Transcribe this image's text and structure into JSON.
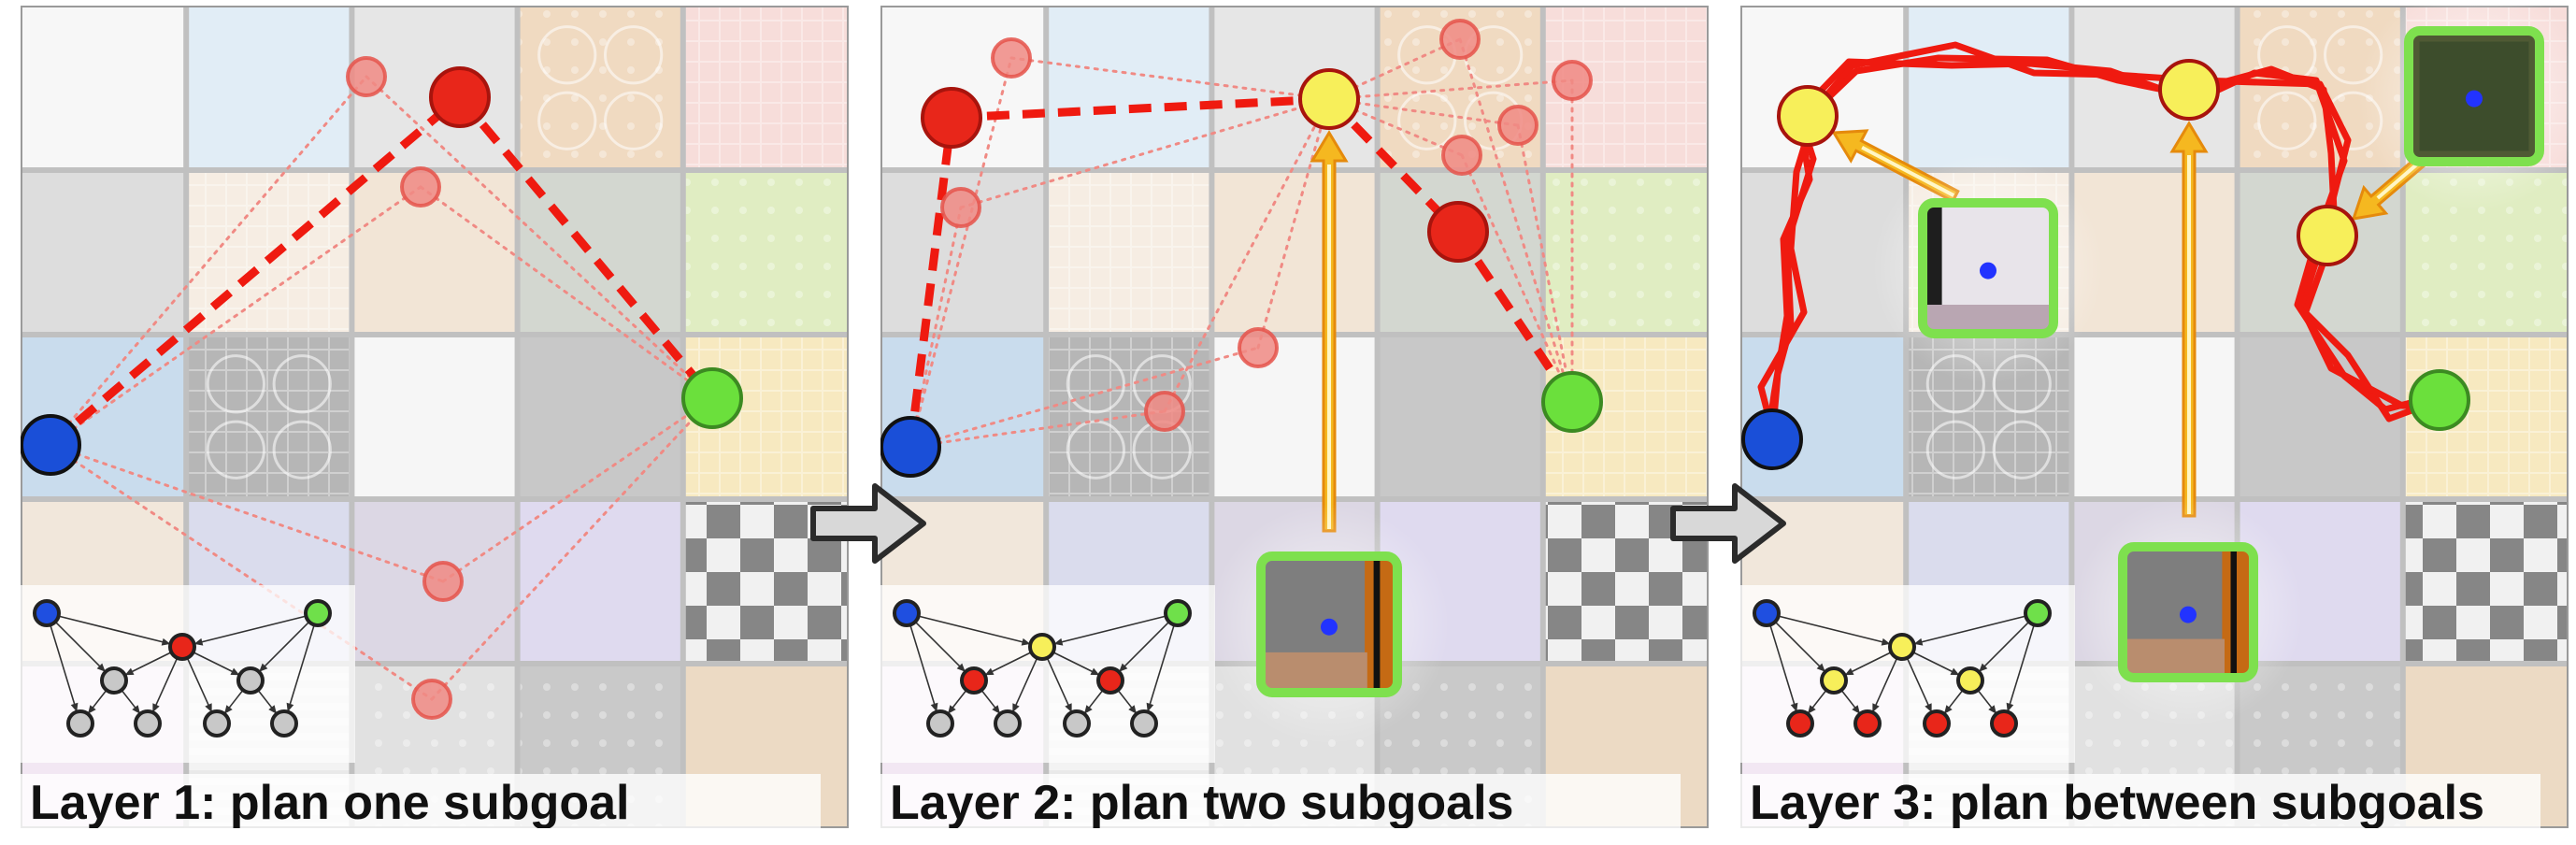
{
  "panels": [
    {
      "caption": "Layer 1: plan one subgoal",
      "tree_colors": {
        "root": [
          "#1f4fe0",
          "#6fe04a"
        ],
        "mid": "red",
        "sub": "gray",
        "leaf": "gray"
      }
    },
    {
      "caption": "Layer 2: plan two subgoals",
      "tree_colors": {
        "root": [
          "#1f4fe0",
          "#6fe04a"
        ],
        "mid": "yellow",
        "sub": "red",
        "leaf": "gray"
      }
    },
    {
      "caption": "Layer 3: plan between subgoals",
      "tree_colors": {
        "root": [
          "#1f4fe0",
          "#6fe04a"
        ],
        "mid": "yellow",
        "sub": "yellow",
        "leaf": "red"
      }
    }
  ],
  "colors": {
    "start": "#1a4fd8",
    "goal": "#6be03c",
    "subgoal_red": "#e8261a",
    "subgoal_yellow": "#f7ef5a",
    "candidate": "#f08a84",
    "path": "#ef1a10",
    "arrow": "#f5b820",
    "thumb_border": "#7ee04e"
  },
  "icons": [
    "right-arrow-icon"
  ]
}
